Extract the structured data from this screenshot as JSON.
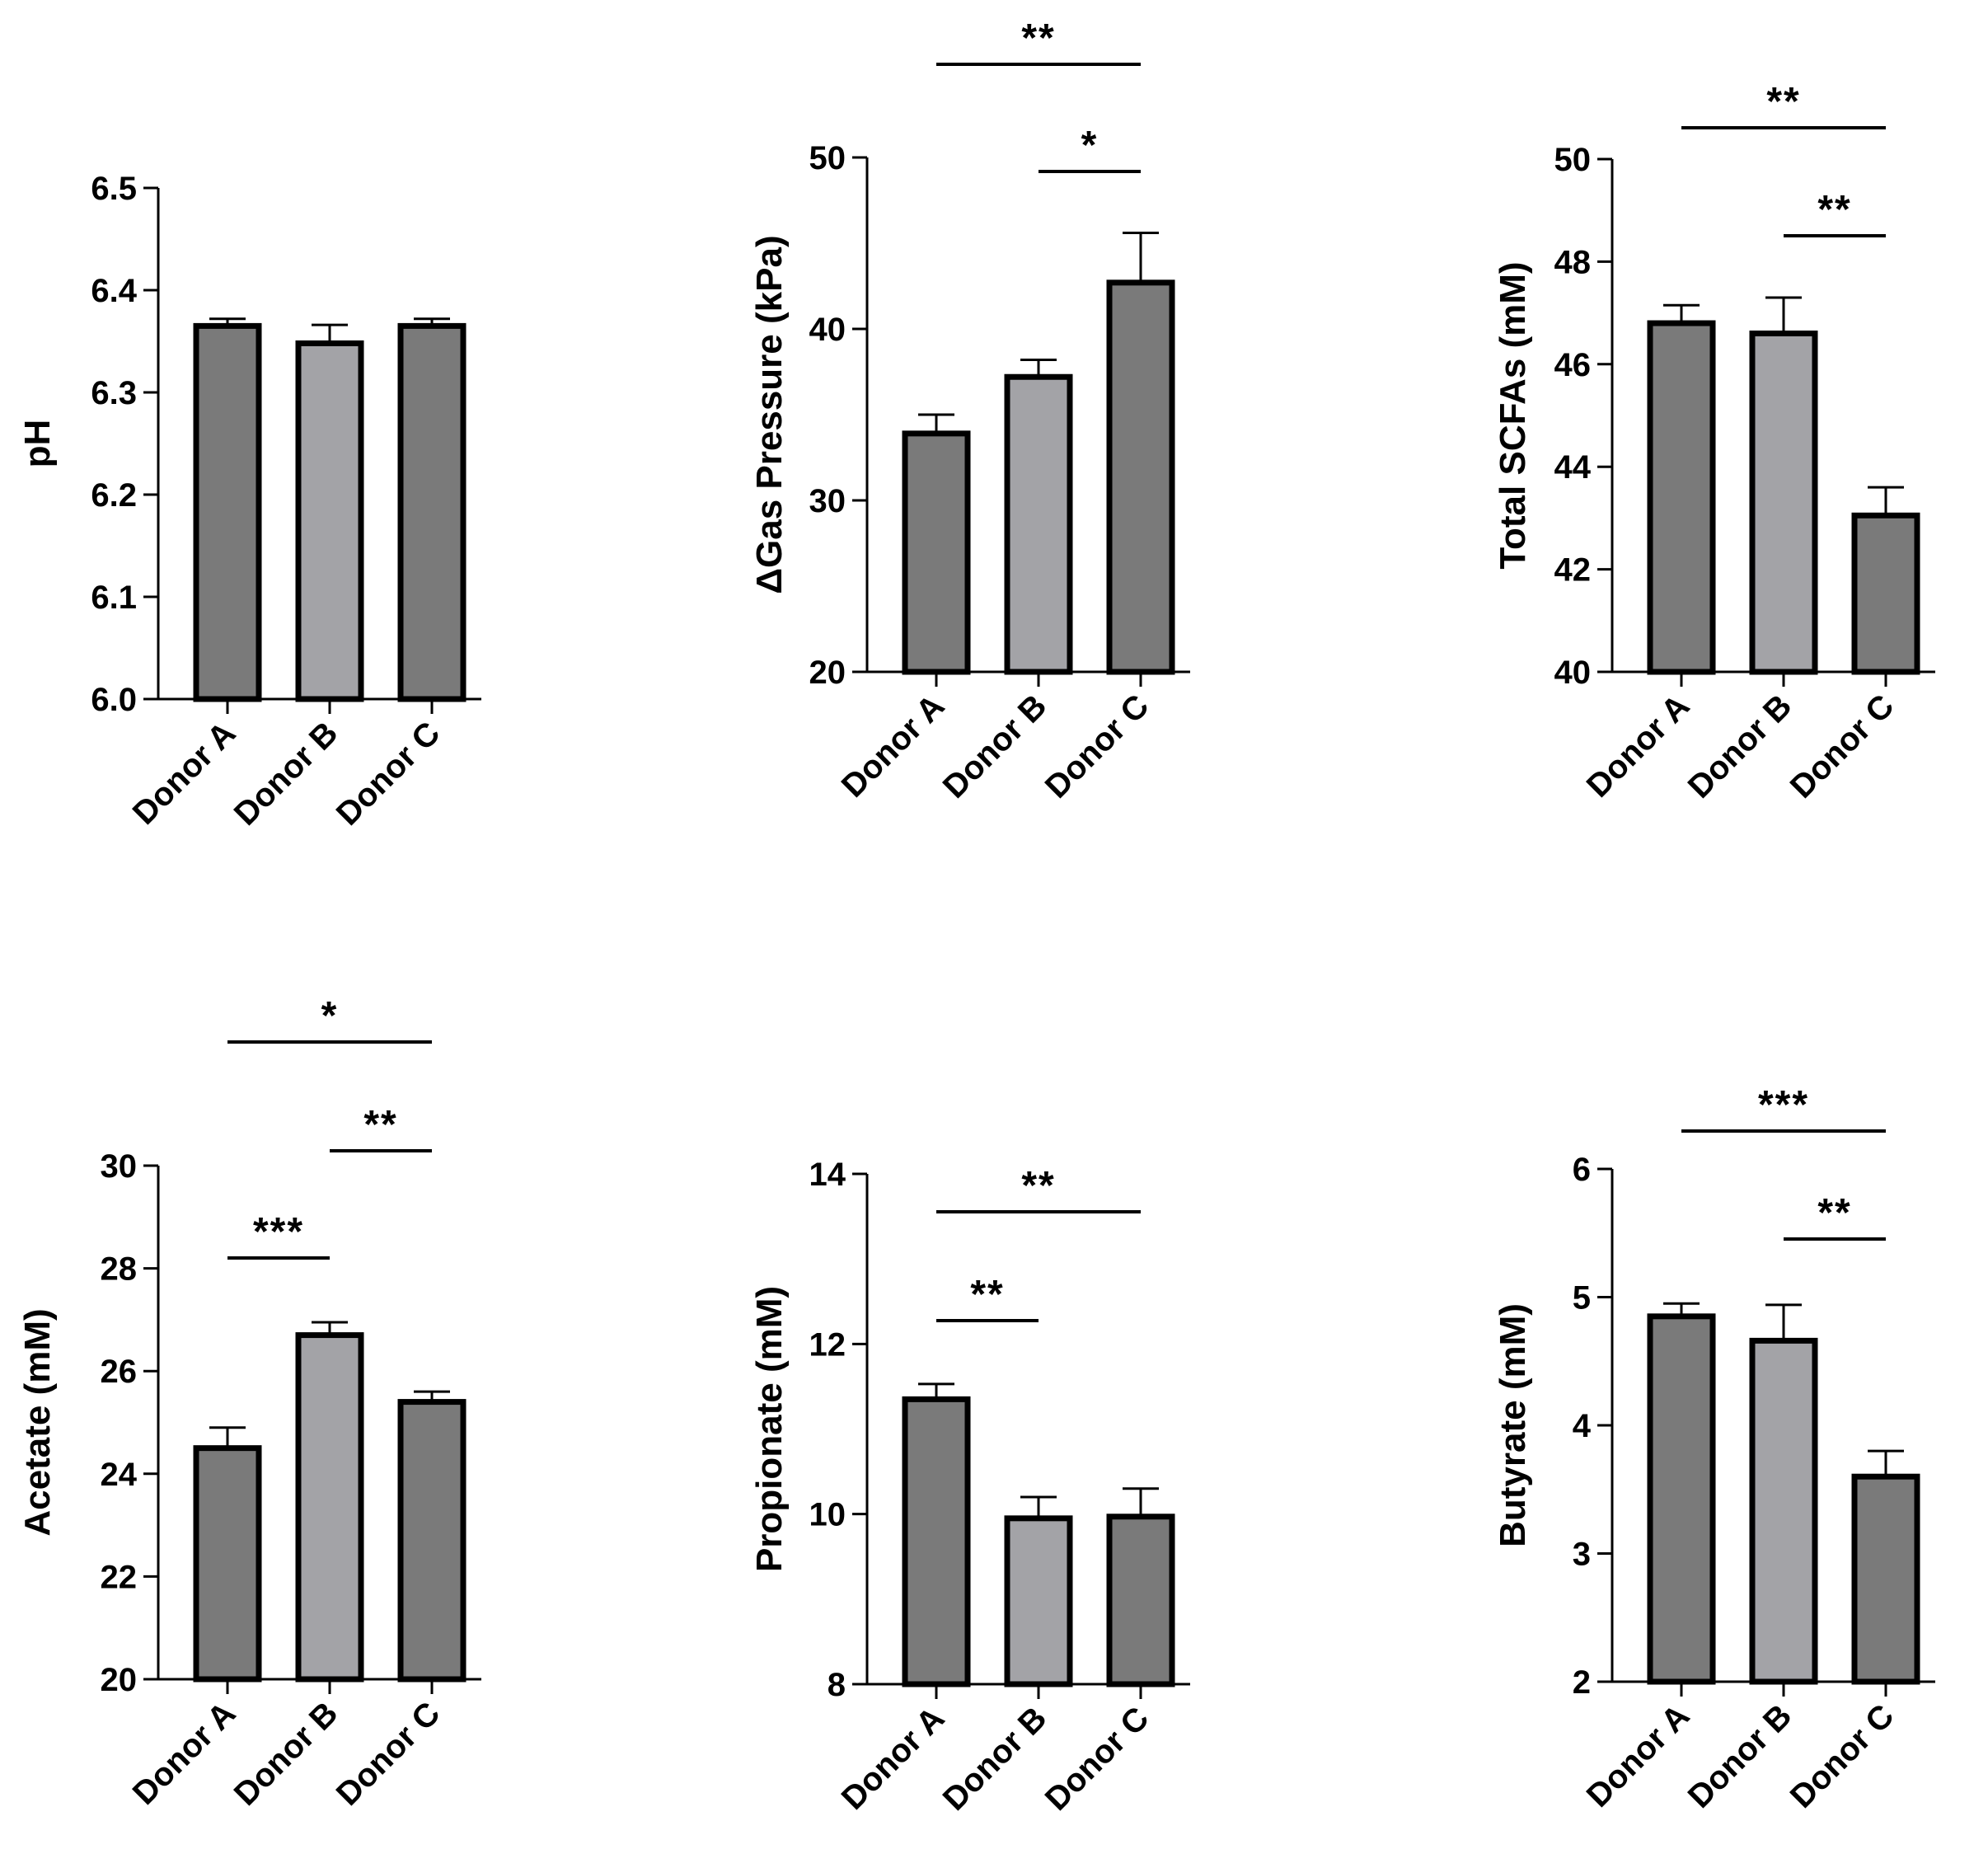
{
  "colors": {
    "bar_dark": "#7a7a7a",
    "bar_light": "#a3a3a7",
    "stroke": "#000000"
  },
  "chart_data": [
    {
      "type": "bar",
      "ylabel": "pH",
      "ylim": [
        6.0,
        6.5
      ],
      "yticks": [
        "6.0",
        "6.1",
        "6.2",
        "6.3",
        "6.4",
        "6.5"
      ],
      "categories": [
        "Donor A",
        "Donor B",
        "Donor C"
      ],
      "values": [
        6.365,
        6.348,
        6.365
      ],
      "errors": [
        0.007,
        0.018,
        0.007
      ],
      "significance": []
    },
    {
      "type": "bar",
      "ylabel": "ΔGas Pressure (kPa)",
      "ylim": [
        20,
        50
      ],
      "yticks": [
        "20",
        "30",
        "40",
        "50"
      ],
      "categories": [
        "Donor A",
        "Donor B",
        "Donor C"
      ],
      "values": [
        33.9,
        37.2,
        42.7
      ],
      "errors": [
        1.1,
        1.0,
        2.9
      ],
      "significance": [
        {
          "from": 0,
          "to": 2,
          "label": "**"
        },
        {
          "from": 1,
          "to": 2,
          "label": "*"
        }
      ]
    },
    {
      "type": "bar",
      "ylabel": "Total SCFAs (mM)",
      "ylim": [
        40,
        50
      ],
      "yticks": [
        "40",
        "42",
        "44",
        "46",
        "48",
        "50"
      ],
      "categories": [
        "Donor A",
        "Donor B",
        "Donor C"
      ],
      "values": [
        46.8,
        46.6,
        43.05
      ],
      "errors": [
        0.35,
        0.7,
        0.55
      ],
      "significance": [
        {
          "from": 0,
          "to": 2,
          "label": "**"
        },
        {
          "from": 1,
          "to": 2,
          "label": "**"
        }
      ]
    },
    {
      "type": "bar",
      "ylabel": "Acetate (mM)",
      "ylim": [
        20,
        30
      ],
      "yticks": [
        "20",
        "22",
        "24",
        "26",
        "28",
        "30"
      ],
      "categories": [
        "Donor A",
        "Donor B",
        "Donor C"
      ],
      "values": [
        24.5,
        26.7,
        25.4
      ],
      "errors": [
        0.4,
        0.25,
        0.2
      ],
      "significance": [
        {
          "from": 0,
          "to": 2,
          "label": "*"
        },
        {
          "from": 1,
          "to": 2,
          "label": "**"
        },
        {
          "from": 0,
          "to": 1,
          "label": "***"
        }
      ]
    },
    {
      "type": "bar",
      "ylabel": "Propionate (mM)",
      "ylim": [
        8,
        14
      ],
      "yticks": [
        "8",
        "10",
        "12",
        "14"
      ],
      "categories": [
        "Donor A",
        "Donor B",
        "Donor C"
      ],
      "values": [
        11.35,
        9.95,
        9.97
      ],
      "errors": [
        0.18,
        0.25,
        0.33
      ],
      "significance": [
        {
          "from": 0,
          "to": 2,
          "label": "**"
        },
        {
          "from": 0,
          "to": 1,
          "label": "**"
        }
      ]
    },
    {
      "type": "bar",
      "ylabel": "Butyrate (mM)",
      "ylim": [
        2,
        6
      ],
      "yticks": [
        "2",
        "3",
        "4",
        "5",
        "6"
      ],
      "categories": [
        "Donor A",
        "Donor B",
        "Donor C"
      ],
      "values": [
        4.85,
        4.66,
        3.6
      ],
      "errors": [
        0.1,
        0.28,
        0.2
      ],
      "significance": [
        {
          "from": 0,
          "to": 2,
          "label": "***"
        },
        {
          "from": 1,
          "to": 2,
          "label": "**"
        }
      ]
    }
  ]
}
